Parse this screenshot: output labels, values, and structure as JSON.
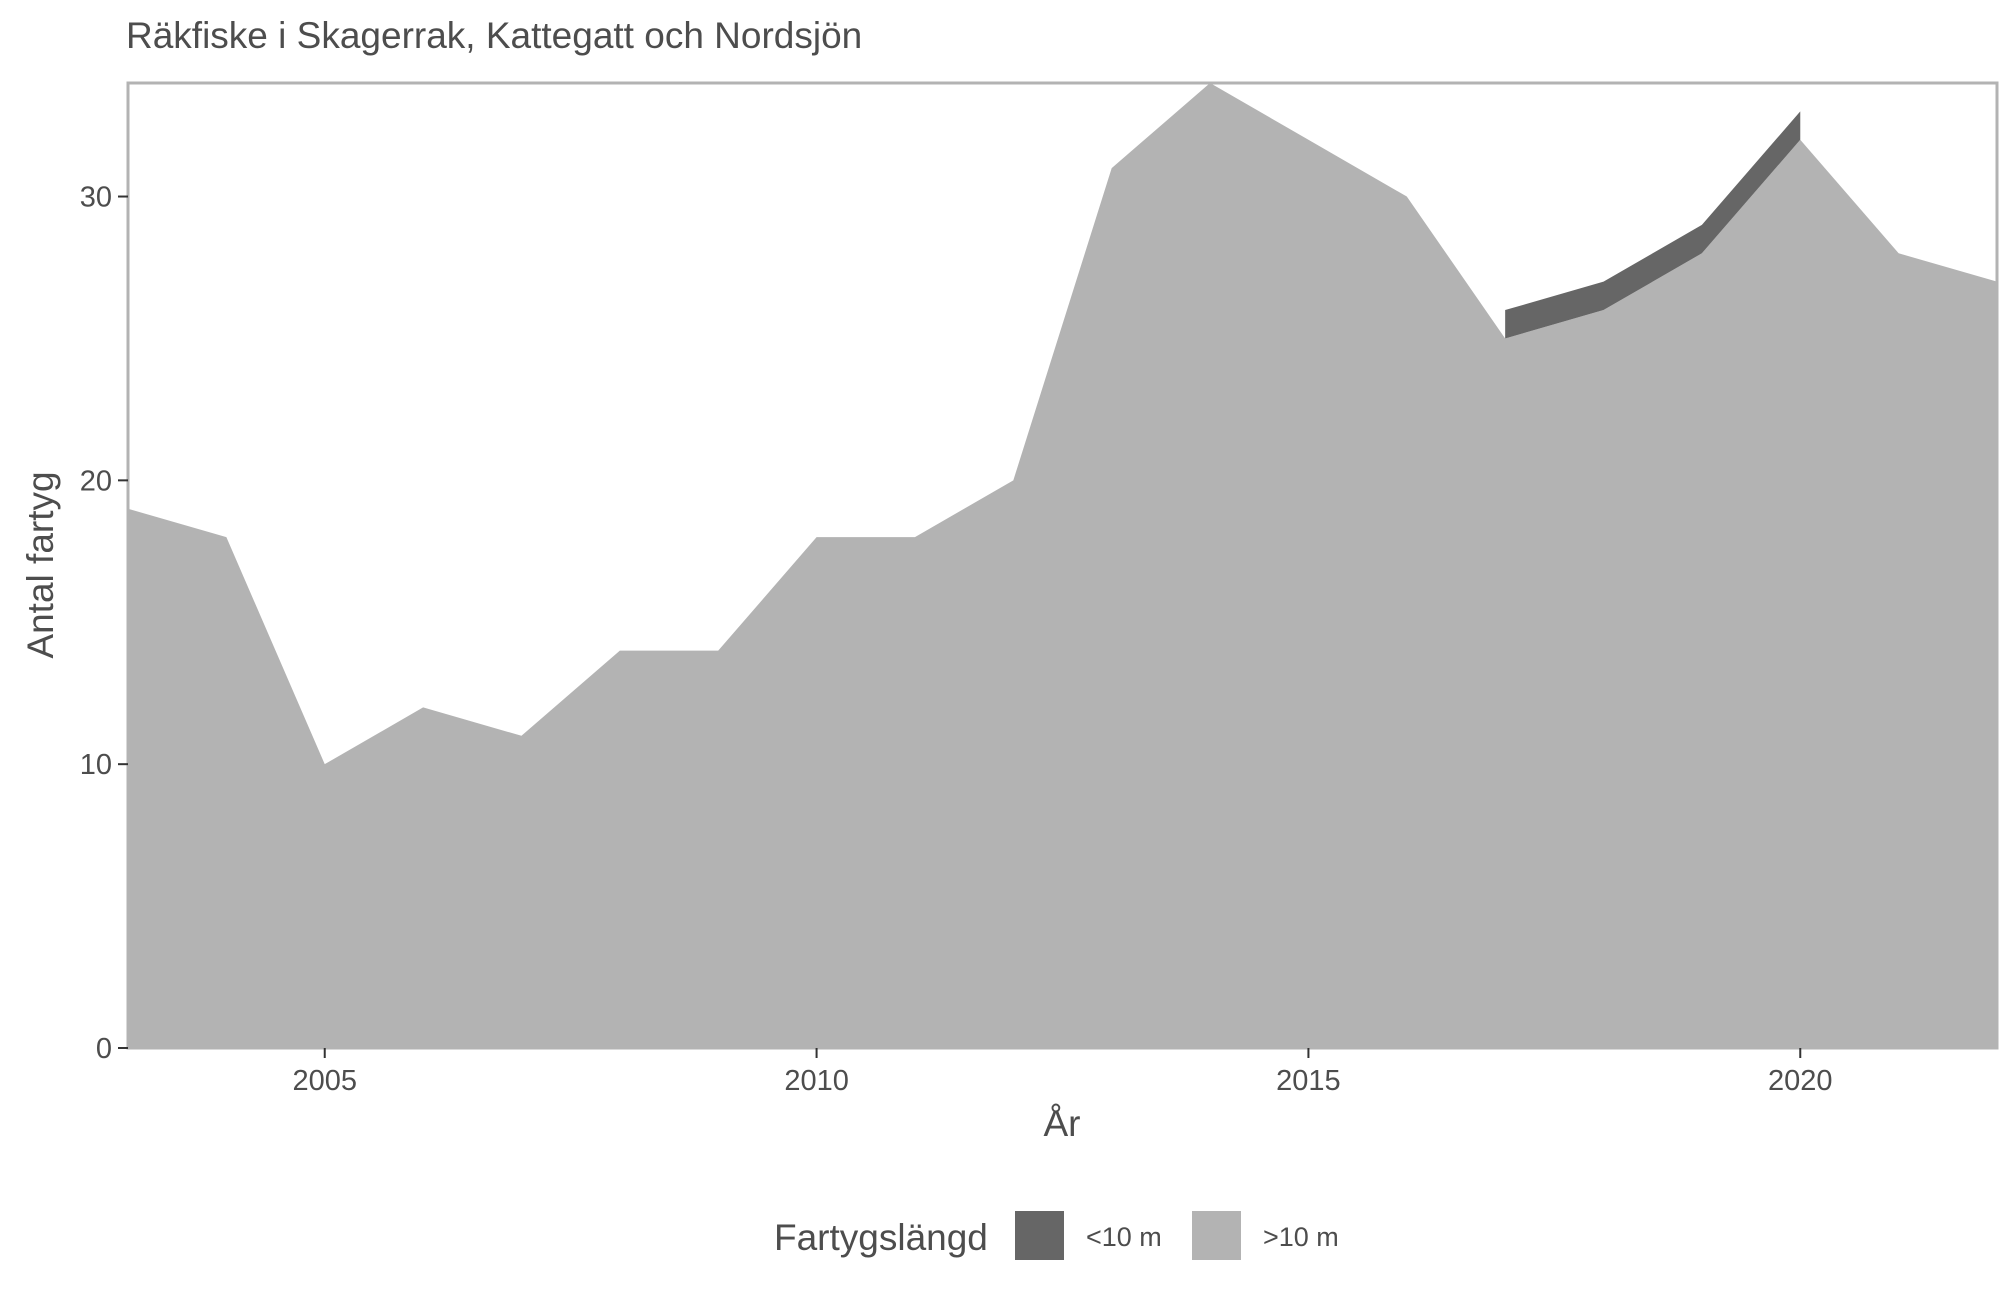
{
  "chart_data": {
    "type": "area",
    "stacked": true,
    "title": "Räkfiske i Skagerrak, Kattegatt och Nordsjön",
    "xlabel": "År",
    "ylabel": "Antal fartyg",
    "xlim": [
      2003,
      2022
    ],
    "ylim": [
      0,
      34
    ],
    "x_ticks": [
      2005,
      2010,
      2015,
      2020
    ],
    "y_ticks": [
      0,
      10,
      20,
      30
    ],
    "grid": false,
    "legend": {
      "title": "Fartygslängd",
      "position": "bottom"
    },
    "x": [
      2003,
      2004,
      2005,
      2006,
      2007,
      2008,
      2009,
      2010,
      2011,
      2012,
      2013,
      2014,
      2015,
      2016,
      2017,
      2018,
      2019,
      2020,
      2021,
      2022
    ],
    "series": [
      {
        "name": ">10 m",
        "color": "#b3b3b3",
        "values": [
          19,
          18,
          10,
          12,
          11,
          14,
          14,
          18,
          18,
          20,
          31,
          34,
          32,
          30,
          25,
          26,
          28,
          32,
          28,
          27
        ]
      },
      {
        "name": "<10 m",
        "color": "#666666",
        "values": [
          null,
          null,
          null,
          null,
          null,
          null,
          null,
          null,
          null,
          null,
          null,
          null,
          null,
          null,
          1,
          1,
          1,
          1,
          null,
          null
        ]
      }
    ]
  }
}
